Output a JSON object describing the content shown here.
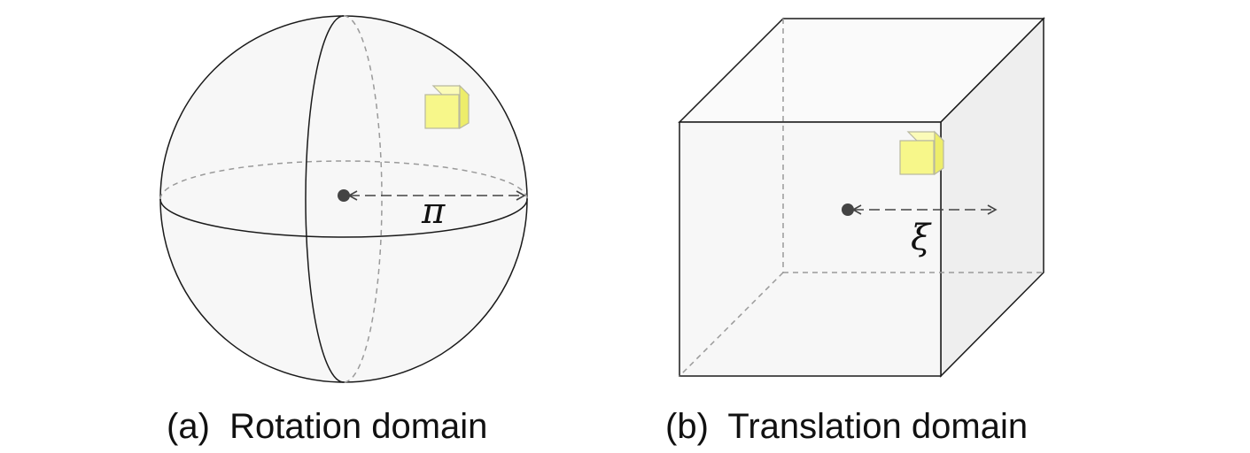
{
  "panels": [
    {
      "caption": "(a)  Rotation domain",
      "symbol": "π",
      "shape": "sphere"
    },
    {
      "caption": "(b)  Translation domain",
      "symbol": "ξ",
      "shape": "cube"
    }
  ],
  "colors": {
    "outline": "#1a1a1a",
    "dashed": "#9a9a9a",
    "fill": "#f7f7f7",
    "side_face": "#eeeeee",
    "small_cube_front": "#f7f78a",
    "small_cube_top": "#fbfbb8",
    "small_cube_side": "#eded6a",
    "small_cube_edge": "#b8b8a0",
    "point": "#444444"
  }
}
